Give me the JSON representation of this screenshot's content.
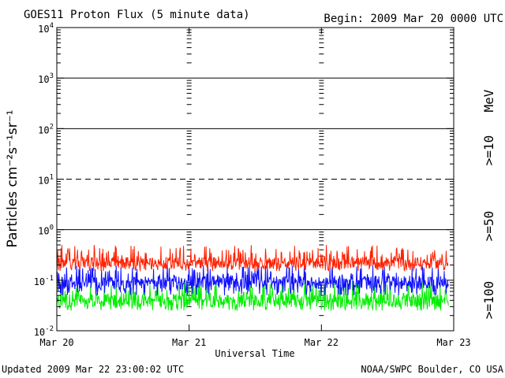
{
  "chart_data": {
    "type": "line",
    "title": "GOES11 Proton Flux (5 minute data)",
    "begin_label": "Begin: 2009 Mar 20 0000 UTC",
    "xlabel": "Universal Time",
    "ylabel": "Particles cm⁻²s⁻¹sr⁻¹",
    "units_label": "MeV",
    "yscale": "log",
    "ylim": [
      0.01,
      10000
    ],
    "x_ticks": [
      "Mar 20",
      "Mar 21",
      "Mar 22",
      "Mar 23"
    ],
    "x_range_days": [
      0,
      3
    ],
    "y_ticks": [
      {
        "base": "10",
        "exp": "-2",
        "value": 0.01
      },
      {
        "base": "10",
        "exp": "-1",
        "value": 0.1
      },
      {
        "base": "10",
        "exp": "0",
        "value": 1
      },
      {
        "base": "10",
        "exp": "1",
        "value": 10
      },
      {
        "base": "10",
        "exp": "2",
        "value": 100
      },
      {
        "base": "10",
        "exp": "3",
        "value": 1000
      },
      {
        "base": "10",
        "exp": "4",
        "value": 10000
      }
    ],
    "threshold_lines": [
      {
        "value": 1,
        "style": "solid"
      },
      {
        "value": 10,
        "style": "dashed"
      },
      {
        "value": 100,
        "style": "solid"
      },
      {
        "value": 1000,
        "style": "solid"
      }
    ],
    "series": [
      {
        "name": ">=10",
        "color": "#ff2000",
        "min": 0.15,
        "max": 0.5,
        "typical": 0.22
      },
      {
        "name": ">=50",
        "color": "#1010ff",
        "min": 0.05,
        "max": 0.2,
        "typical": 0.09
      },
      {
        "name": ">=100",
        "color": "#00ee00",
        "min": 0.025,
        "max": 0.1,
        "typical": 0.04
      }
    ],
    "updated": "Updated 2009 Mar 22 23:00:02 UTC",
    "source": "NOAA/SWPC Boulder, CO USA"
  }
}
